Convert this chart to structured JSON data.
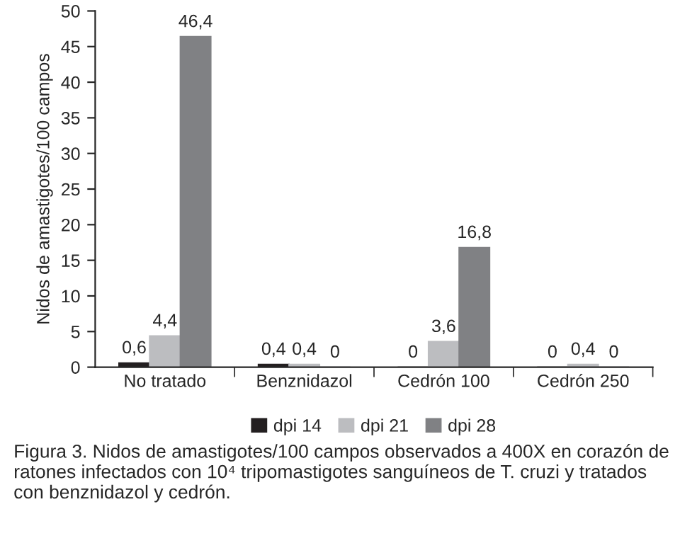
{
  "chart_data": {
    "type": "bar",
    "ylabel": "Nidos de amastigotes/100 campos",
    "categories": [
      "No tratado",
      "Benznidazol",
      "Cedrón 100",
      "Cedrón 250"
    ],
    "series": [
      {
        "name": "dpi 14",
        "color": "#231f20",
        "values": [
          0.6,
          0.4,
          0,
          0
        ],
        "value_labels": [
          "0,6",
          "0,4",
          "0",
          "0"
        ]
      },
      {
        "name": "dpi 21",
        "color": "#bcbdc0",
        "values": [
          4.4,
          0.4,
          3.6,
          0.4
        ],
        "value_labels": [
          "4,4",
          "0,4",
          "3,6",
          "0,4"
        ]
      },
      {
        "name": "dpi 28",
        "color": "#808184",
        "values": [
          46.4,
          0,
          16.8,
          0
        ],
        "value_labels": [
          "46,4",
          "0",
          "16,8",
          "0"
        ]
      }
    ],
    "ylim": [
      0,
      50
    ],
    "yticks": [
      0,
      5,
      10,
      15,
      20,
      25,
      30,
      35,
      40,
      45,
      50
    ],
    "grid": false,
    "legend": "bottom",
    "annotations": [
      "Figura 3. Nidos de amastigotes/100 campos observados a 400X en corazón de ratones infectados con 10⁴ tripomastigotes sanguíneos de T. cruzi y tratados con benznidazol y cedrón."
    ]
  }
}
